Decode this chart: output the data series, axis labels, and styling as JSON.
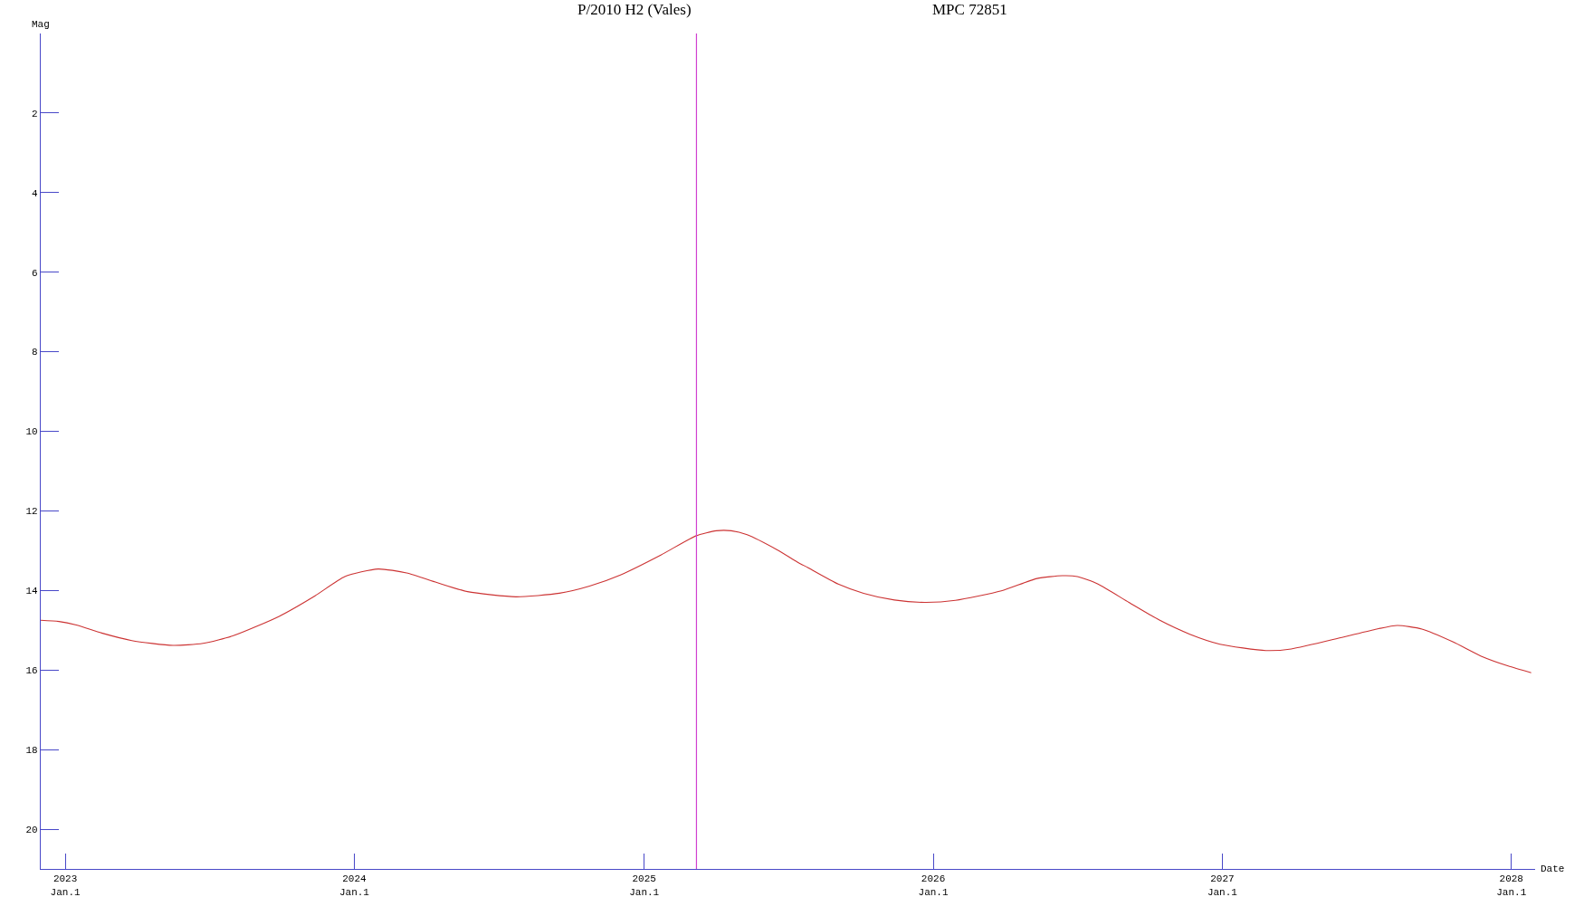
{
  "chart_data": {
    "type": "line",
    "title": "P/2010 H2 (Vales)",
    "subtitle": "MPC 72851",
    "xlabel": "Date",
    "ylabel": "Mag",
    "x": [
      "2022-12-01",
      "2022-12-24",
      "2023-01-15",
      "2023-02-16",
      "2023-03-26",
      "2023-05-17",
      "2023-06-24",
      "2023-08-02",
      "2023-09-28",
      "2023-11-12",
      "2023-12-20",
      "2024-01-31",
      "2024-03-07",
      "2024-04-14",
      "2024-05-23",
      "2024-07-23",
      "2024-09-16",
      "2024-10-24",
      "2024-12-02",
      "2025-01-22",
      "2025-03-07",
      "2025-04-02",
      "2025-04-21",
      "2025-05-11",
      "2025-06-18",
      "2025-07-13",
      "2025-07-27",
      "2025-09-03",
      "2025-10-05",
      "2025-11-13",
      "2025-12-21",
      "2026-01-29",
      "2026-03-28",
      "2026-05-12",
      "2026-06-13",
      "2026-07-02",
      "2026-07-28",
      "2026-09-05",
      "2026-10-13",
      "2026-11-21",
      "2026-12-29",
      "2027-02-25",
      "2027-03-29",
      "2027-06-01",
      "2027-07-15",
      "2027-08-10",
      "2027-09-10",
      "2027-10-19",
      "2027-11-26",
      "2027-12-28",
      "2028-01-26"
    ],
    "series": [
      {
        "color": "#cc3333",
        "values": [
          14.75,
          14.78,
          14.87,
          15.07,
          15.26,
          15.38,
          15.33,
          15.13,
          14.65,
          14.14,
          13.65,
          13.46,
          13.56,
          13.8,
          14.03,
          14.16,
          14.07,
          13.89,
          13.61,
          13.11,
          12.63,
          12.5,
          12.5,
          12.6,
          12.98,
          13.28,
          13.43,
          13.84,
          14.07,
          14.24,
          14.3,
          14.25,
          14.01,
          13.7,
          13.63,
          13.65,
          13.84,
          14.3,
          14.74,
          15.1,
          15.35,
          15.51,
          15.47,
          15.18,
          14.97,
          14.88,
          14.97,
          15.29,
          15.67,
          15.9,
          16.07
        ]
      }
    ],
    "xlim": [
      "2022-12-01",
      "2028-01-31"
    ],
    "xticks": [
      {
        "value": "2023-01-01",
        "label": "2023\nJan.1"
      },
      {
        "value": "2024-01-01",
        "label": "2024\nJan.1"
      },
      {
        "value": "2025-01-01",
        "label": "2025\nJan.1"
      },
      {
        "value": "2026-01-01",
        "label": "2026\nJan.1"
      },
      {
        "value": "2027-01-01",
        "label": "2027\nJan.1"
      },
      {
        "value": "2028-01-01",
        "label": "2028\nJan.1"
      }
    ],
    "ylim": [
      21,
      0
    ],
    "yticks": [
      2,
      4,
      6,
      8,
      10,
      12,
      14,
      16,
      18,
      20
    ],
    "ref_lines": [
      {
        "axis": "x",
        "value": "2025-03-08",
        "color": "#d040d0"
      }
    ]
  }
}
